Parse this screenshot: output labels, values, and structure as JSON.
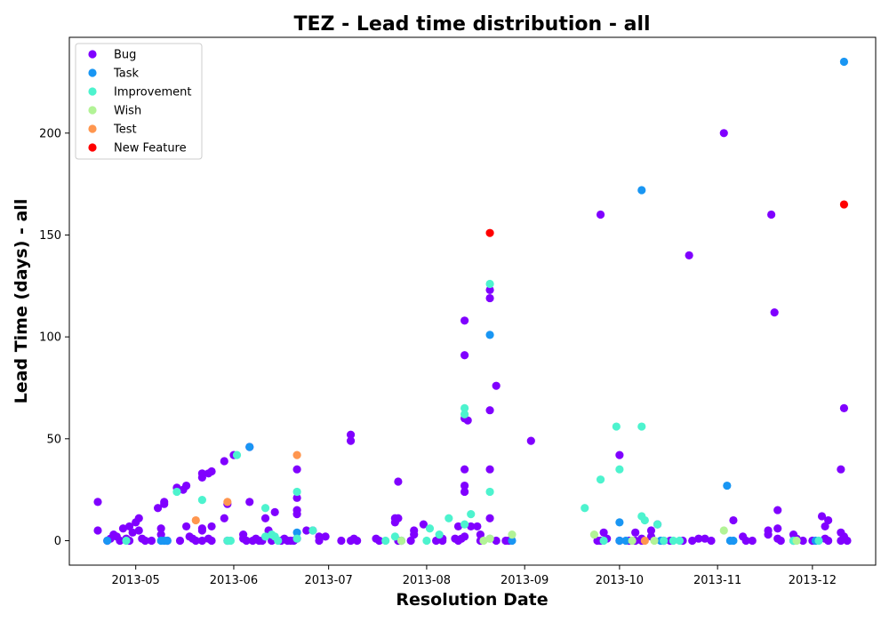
{
  "chart_data": {
    "type": "scatter",
    "title": "TEZ - Lead time distribution - all",
    "xlabel": "Resolution Date",
    "ylabel": "Lead Time (days) - all",
    "xlim": [
      "2013-04-10",
      "2013-12-21"
    ],
    "ylim": [
      -12,
      247
    ],
    "x_ticks": [
      "2013-05-01",
      "2013-06-01",
      "2013-07-01",
      "2013-08-01",
      "2013-09-01",
      "2013-10-01",
      "2013-11-01",
      "2013-12-01"
    ],
    "x_tick_labels": [
      "2013-05",
      "2013-06",
      "2013-07",
      "2013-08",
      "2013-09",
      "2013-10",
      "2013-11",
      "2013-12"
    ],
    "y_ticks": [
      0,
      50,
      100,
      150,
      200
    ],
    "grid": false,
    "legend_position": "top-left",
    "series": [
      {
        "name": "Bug",
        "color": "#8000ff",
        "points": [
          [
            "2013-04-19",
            19
          ],
          [
            "2013-04-19",
            5
          ],
          [
            "2013-04-22",
            0
          ],
          [
            "2013-04-23",
            1
          ],
          [
            "2013-04-24",
            3
          ],
          [
            "2013-04-25",
            2
          ],
          [
            "2013-04-26",
            0
          ],
          [
            "2013-04-27",
            6
          ],
          [
            "2013-04-28",
            1
          ],
          [
            "2013-04-29",
            7
          ],
          [
            "2013-04-29",
            0
          ],
          [
            "2013-04-30",
            4
          ],
          [
            "2013-05-01",
            9
          ],
          [
            "2013-05-02",
            11
          ],
          [
            "2013-05-02",
            5
          ],
          [
            "2013-05-03",
            1
          ],
          [
            "2013-05-04",
            0
          ],
          [
            "2013-05-06",
            0
          ],
          [
            "2013-05-08",
            16
          ],
          [
            "2013-05-09",
            6
          ],
          [
            "2013-05-09",
            3
          ],
          [
            "2013-05-10",
            19
          ],
          [
            "2013-05-10",
            18
          ],
          [
            "2013-05-11",
            0
          ],
          [
            "2013-05-14",
            26
          ],
          [
            "2013-05-15",
            0
          ],
          [
            "2013-05-16",
            25
          ],
          [
            "2013-05-17",
            27
          ],
          [
            "2013-05-17",
            7
          ],
          [
            "2013-05-18",
            2
          ],
          [
            "2013-05-19",
            1
          ],
          [
            "2013-05-20",
            0
          ],
          [
            "2013-05-22",
            31
          ],
          [
            "2013-05-22",
            33
          ],
          [
            "2013-05-22",
            6
          ],
          [
            "2013-05-22",
            5
          ],
          [
            "2013-05-22",
            0
          ],
          [
            "2013-05-24",
            33
          ],
          [
            "2013-05-24",
            1
          ],
          [
            "2013-05-25",
            34
          ],
          [
            "2013-05-25",
            7
          ],
          [
            "2013-05-25",
            0
          ],
          [
            "2013-05-29",
            39
          ],
          [
            "2013-05-29",
            11
          ],
          [
            "2013-05-30",
            18
          ],
          [
            "2013-05-30",
            0
          ],
          [
            "2013-06-01",
            42
          ],
          [
            "2013-06-04",
            3
          ],
          [
            "2013-06-04",
            1
          ],
          [
            "2013-06-05",
            0
          ],
          [
            "2013-06-06",
            46
          ],
          [
            "2013-06-06",
            19
          ],
          [
            "2013-06-07",
            0
          ],
          [
            "2013-06-08",
            1
          ],
          [
            "2013-06-09",
            0
          ],
          [
            "2013-06-10",
            0
          ],
          [
            "2013-06-11",
            11
          ],
          [
            "2013-06-12",
            5
          ],
          [
            "2013-06-13",
            0
          ],
          [
            "2013-06-14",
            14
          ],
          [
            "2013-06-16",
            0
          ],
          [
            "2013-06-17",
            1
          ],
          [
            "2013-06-18",
            0
          ],
          [
            "2013-06-19",
            0
          ],
          [
            "2013-06-20",
            0
          ],
          [
            "2013-06-21",
            35
          ],
          [
            "2013-06-21",
            21
          ],
          [
            "2013-06-21",
            15
          ],
          [
            "2013-06-21",
            13
          ],
          [
            "2013-06-21",
            1
          ],
          [
            "2013-06-24",
            5
          ],
          [
            "2013-06-26",
            5
          ],
          [
            "2013-06-28",
            2
          ],
          [
            "2013-06-28",
            0
          ],
          [
            "2013-06-30",
            2
          ],
          [
            "2013-07-05",
            0
          ],
          [
            "2013-07-08",
            52
          ],
          [
            "2013-07-08",
            49
          ],
          [
            "2013-07-08",
            0
          ],
          [
            "2013-07-09",
            1
          ],
          [
            "2013-07-10",
            0
          ],
          [
            "2013-07-16",
            1
          ],
          [
            "2013-07-17",
            0
          ],
          [
            "2013-07-22",
            11
          ],
          [
            "2013-07-22",
            9
          ],
          [
            "2013-07-23",
            29
          ],
          [
            "2013-07-23",
            11
          ],
          [
            "2013-07-23",
            0
          ],
          [
            "2013-07-24",
            0
          ],
          [
            "2013-07-27",
            0
          ],
          [
            "2013-07-28",
            5
          ],
          [
            "2013-07-28",
            3
          ],
          [
            "2013-07-31",
            8
          ],
          [
            "2013-08-04",
            0
          ],
          [
            "2013-08-06",
            1
          ],
          [
            "2013-08-06",
            0
          ],
          [
            "2013-08-10",
            1
          ],
          [
            "2013-08-11",
            7
          ],
          [
            "2013-08-11",
            0
          ],
          [
            "2013-08-12",
            1
          ],
          [
            "2013-08-13",
            108
          ],
          [
            "2013-08-13",
            91
          ],
          [
            "2013-08-13",
            60
          ],
          [
            "2013-08-13",
            35
          ],
          [
            "2013-08-13",
            27
          ],
          [
            "2013-08-13",
            24
          ],
          [
            "2013-08-13",
            2
          ],
          [
            "2013-08-14",
            59
          ],
          [
            "2013-08-15",
            7
          ],
          [
            "2013-08-17",
            7
          ],
          [
            "2013-08-18",
            3
          ],
          [
            "2013-08-18",
            0
          ],
          [
            "2013-08-21",
            123
          ],
          [
            "2013-08-21",
            119
          ],
          [
            "2013-08-21",
            64
          ],
          [
            "2013-08-21",
            35
          ],
          [
            "2013-08-21",
            11
          ],
          [
            "2013-08-23",
            76
          ],
          [
            "2013-08-23",
            0
          ],
          [
            "2013-08-26",
            0
          ],
          [
            "2013-08-27",
            0
          ],
          [
            "2013-09-03",
            49
          ],
          [
            "2013-09-24",
            0
          ],
          [
            "2013-09-25",
            160
          ],
          [
            "2013-09-25",
            0
          ],
          [
            "2013-09-26",
            4
          ],
          [
            "2013-09-27",
            1
          ],
          [
            "2013-10-01",
            42
          ],
          [
            "2013-10-01",
            0
          ],
          [
            "2013-10-04",
            0
          ],
          [
            "2013-10-06",
            4
          ],
          [
            "2013-10-06",
            0
          ],
          [
            "2013-10-08",
            1
          ],
          [
            "2013-10-08",
            0
          ],
          [
            "2013-10-11",
            5
          ],
          [
            "2013-10-11",
            2
          ],
          [
            "2013-10-13",
            8
          ],
          [
            "2013-10-15",
            0
          ],
          [
            "2013-10-17",
            0
          ],
          [
            "2013-10-21",
            0
          ],
          [
            "2013-10-23",
            140
          ],
          [
            "2013-10-24",
            0
          ],
          [
            "2013-10-26",
            1
          ],
          [
            "2013-10-28",
            1
          ],
          [
            "2013-10-30",
            0
          ],
          [
            "2013-11-03",
            200
          ],
          [
            "2013-11-06",
            10
          ],
          [
            "2013-11-09",
            2
          ],
          [
            "2013-11-10",
            0
          ],
          [
            "2013-11-12",
            0
          ],
          [
            "2013-11-17",
            5
          ],
          [
            "2013-11-17",
            3
          ],
          [
            "2013-11-18",
            160
          ],
          [
            "2013-11-19",
            112
          ],
          [
            "2013-11-20",
            15
          ],
          [
            "2013-11-20",
            6
          ],
          [
            "2013-11-20",
            1
          ],
          [
            "2013-11-21",
            0
          ],
          [
            "2013-11-25",
            3
          ],
          [
            "2013-11-25",
            0
          ],
          [
            "2013-11-26",
            1
          ],
          [
            "2013-11-28",
            0
          ],
          [
            "2013-12-01",
            0
          ],
          [
            "2013-12-04",
            12
          ],
          [
            "2013-12-05",
            7
          ],
          [
            "2013-12-05",
            1
          ],
          [
            "2013-12-06",
            10
          ],
          [
            "2013-12-06",
            0
          ],
          [
            "2013-12-10",
            35
          ],
          [
            "2013-12-10",
            4
          ],
          [
            "2013-12-10",
            0
          ],
          [
            "2013-12-11",
            65
          ],
          [
            "2013-12-11",
            2
          ],
          [
            "2013-12-12",
            0
          ]
        ]
      },
      {
        "name": "Task",
        "color": "#1996f3",
        "points": [
          [
            "2013-04-22",
            0
          ],
          [
            "2013-05-09",
            0
          ],
          [
            "2013-05-10",
            0
          ],
          [
            "2013-05-11",
            0
          ],
          [
            "2013-06-06",
            46
          ],
          [
            "2013-06-21",
            4
          ],
          [
            "2013-08-21",
            101
          ],
          [
            "2013-08-28",
            0
          ],
          [
            "2013-10-01",
            9
          ],
          [
            "2013-10-01",
            0
          ],
          [
            "2013-10-03",
            0
          ],
          [
            "2013-10-08",
            172
          ],
          [
            "2013-10-14",
            0
          ],
          [
            "2013-11-04",
            27
          ],
          [
            "2013-11-05",
            0
          ],
          [
            "2013-11-06",
            0
          ],
          [
            "2013-12-02",
            0
          ],
          [
            "2013-12-11",
            235
          ]
        ]
      },
      {
        "name": "Improvement",
        "color": "#4df3ce",
        "points": [
          [
            "2013-04-28",
            0
          ],
          [
            "2013-05-14",
            24
          ],
          [
            "2013-05-22",
            20
          ],
          [
            "2013-05-30",
            0
          ],
          [
            "2013-05-31",
            0
          ],
          [
            "2013-06-02",
            42
          ],
          [
            "2013-06-11",
            16
          ],
          [
            "2013-06-11",
            2
          ],
          [
            "2013-06-13",
            3
          ],
          [
            "2013-06-14",
            2
          ],
          [
            "2013-06-15",
            0
          ],
          [
            "2013-06-21",
            24
          ],
          [
            "2013-06-21",
            1
          ],
          [
            "2013-06-26",
            5
          ],
          [
            "2013-07-19",
            0
          ],
          [
            "2013-07-22",
            2
          ],
          [
            "2013-07-24",
            0
          ],
          [
            "2013-08-01",
            0
          ],
          [
            "2013-08-02",
            6
          ],
          [
            "2013-08-05",
            3
          ],
          [
            "2013-08-08",
            11
          ],
          [
            "2013-08-13",
            65
          ],
          [
            "2013-08-13",
            62
          ],
          [
            "2013-08-13",
            8
          ],
          [
            "2013-08-15",
            13
          ],
          [
            "2013-08-21",
            126
          ],
          [
            "2013-08-21",
            24
          ],
          [
            "2013-08-21",
            1
          ],
          [
            "2013-09-20",
            16
          ],
          [
            "2013-09-25",
            30
          ],
          [
            "2013-09-26",
            0
          ],
          [
            "2013-09-30",
            56
          ],
          [
            "2013-10-01",
            35
          ],
          [
            "2013-10-08",
            56
          ],
          [
            "2013-10-08",
            12
          ],
          [
            "2013-10-09",
            10
          ],
          [
            "2013-10-13",
            8
          ],
          [
            "2013-10-15",
            0
          ],
          [
            "2013-10-18",
            0
          ],
          [
            "2013-10-20",
            0
          ],
          [
            "2013-11-25",
            0
          ],
          [
            "2013-12-03",
            0
          ]
        ]
      },
      {
        "name": "Wish",
        "color": "#b2f396",
        "points": [
          [
            "2013-07-24",
            0
          ],
          [
            "2013-08-19",
            0
          ],
          [
            "2013-08-21",
            1
          ],
          [
            "2013-08-28",
            3
          ],
          [
            "2013-09-23",
            3
          ],
          [
            "2013-10-05",
            0
          ],
          [
            "2013-10-12",
            0
          ],
          [
            "2013-11-03",
            5
          ],
          [
            "2013-11-26",
            0
          ]
        ]
      },
      {
        "name": "Test",
        "color": "#ff964f",
        "points": [
          [
            "2013-05-20",
            10
          ],
          [
            "2013-05-30",
            19
          ],
          [
            "2013-06-21",
            42
          ],
          [
            "2013-10-09",
            0
          ]
        ]
      },
      {
        "name": "New Feature",
        "color": "#ff0000",
        "points": [
          [
            "2013-08-21",
            151
          ],
          [
            "2013-12-11",
            165
          ]
        ]
      }
    ]
  }
}
